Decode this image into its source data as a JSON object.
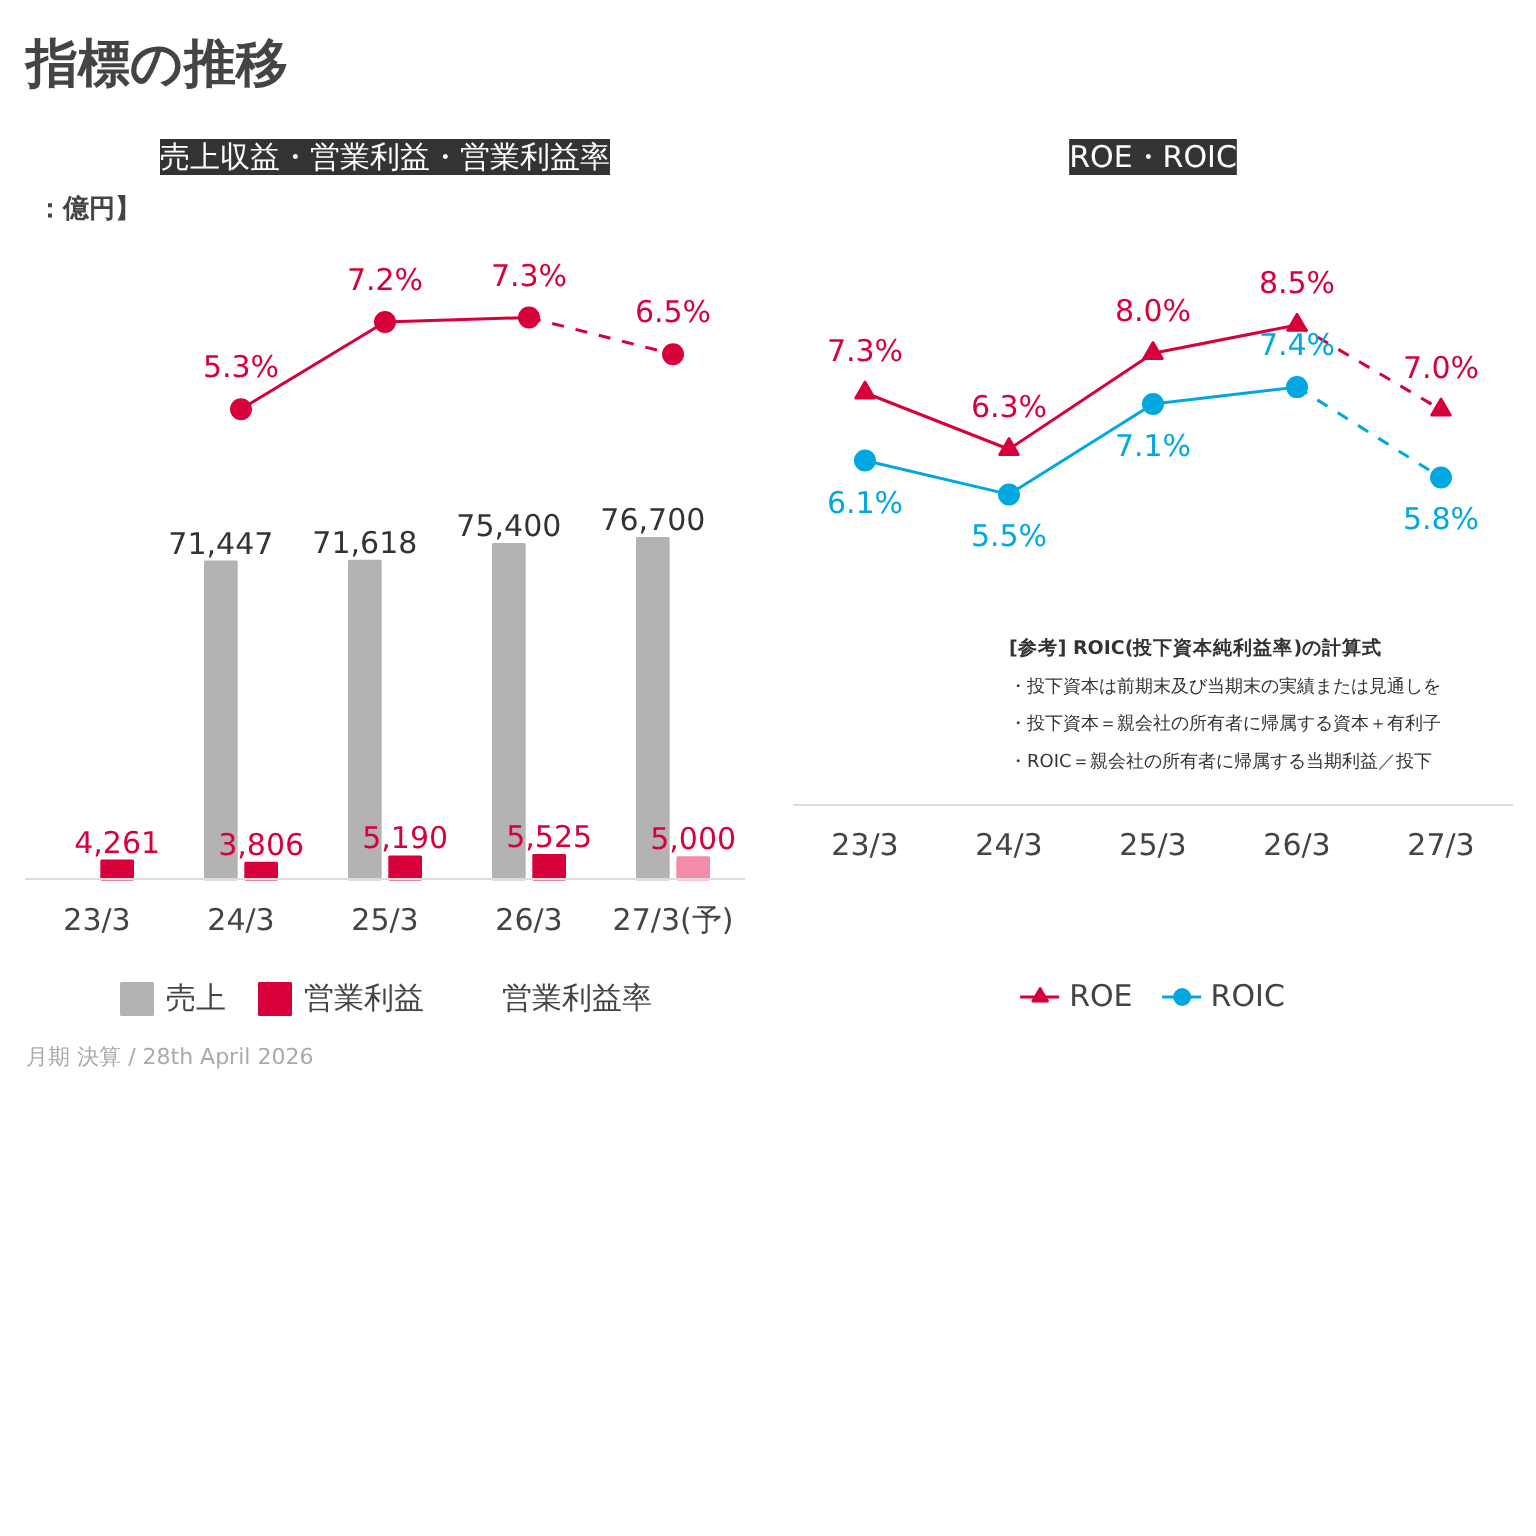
{
  "chart_data": [
    {
      "type": "line",
      "title": "売上収益・営業利益・営業利益率",
      "subtitle": "：億円】",
      "tick_labels": false,
      "grid": false,
      "series": [
        {
          "name": "営業利益率",
          "color": "#d7003a",
          "marker": "circle",
          "line_style": "solid",
          "values": [
            null,
            5.3,
            7.2,
            7.3,
            null
          ],
          "value_labels": [
            null,
            "5.3%",
            "7.2%",
            "7.3%",
            null
          ]
        },
        {
          "color": "#d7003a",
          "marker": "circle",
          "line_style": "dashed",
          "values": [
            null,
            null,
            null,
            7.3,
            6.5
          ],
          "value_labels": [
            null,
            null,
            null,
            null,
            "6.5%"
          ]
        }
      ],
      "annotations": [
        "指標の推移",
        "月期 決算 / 28th April 2026"
      ]
    },
    {
      "type": "bar",
      "categories": [
        "23/3",
        "24/3",
        "25/3",
        "26/3",
        "27/3(予)"
      ],
      "tick_labels": "x",
      "grid": false,
      "legend": "bottom",
      "series": [
        {
          "name": "売上",
          "color": "#b3b3b3",
          "values": [
            null,
            71447,
            71618,
            75400,
            76700
          ],
          "value_labels": [
            null,
            "71,447",
            "71,618",
            "75,400",
            "76,700"
          ]
        },
        {
          "name": "営業利益",
          "color": "#d7003a",
          "colors": [
            "#d7003a",
            "#d7003a",
            "#d7003a",
            "#d7003a",
            "#f28ca8"
          ],
          "values": [
            4261,
            3806,
            5190,
            5525,
            5000
          ],
          "value_labels": [
            "4,261",
            "3,806",
            "5,190",
            "5,525",
            "5,000"
          ]
        }
      ]
    },
    {
      "type": "line",
      "title": "ROE・ROIC",
      "categories": [
        "23/3",
        "24/3",
        "25/3",
        "26/3",
        "27/3"
      ],
      "tick_labels": "x",
      "grid": false,
      "legend": "bottom",
      "series": [
        {
          "name": "ROE",
          "color": "#d7003a",
          "marker": "triangle",
          "line_style": "solid",
          "values": [
            7.3,
            6.3,
            8.0,
            8.5,
            null
          ],
          "value_labels": [
            "7.3%",
            "6.3%",
            "8.0%",
            "8.5%",
            null
          ]
        },
        {
          "color": "#d7003a",
          "marker": "triangle",
          "line_style": "dashed",
          "values": [
            null,
            null,
            null,
            8.5,
            7.0
          ],
          "value_labels": [
            null,
            null,
            null,
            null,
            "7.0%"
          ]
        },
        {
          "name": "ROIC",
          "color": "#00a7e1",
          "marker": "circle",
          "line_style": "solid",
          "values": [
            6.1,
            5.5,
            7.1,
            7.4,
            null
          ],
          "value_labels": [
            "6.1%",
            "5.5%",
            "7.1%",
            "7.4%",
            null
          ]
        },
        {
          "color": "#00a7e1",
          "marker": "circle",
          "line_style": "dashed",
          "values": [
            null,
            null,
            null,
            7.4,
            5.8
          ],
          "value_labels": [
            null,
            null,
            null,
            null,
            "5.8%"
          ]
        }
      ],
      "annotations": [
        "[参考] ROIC(投下資本純利益率)の計算式",
        "・投下資本は前期末及び当期末の実績または見通しを",
        "・投下資本＝親会社の所有者に帰属する資本＋有利子",
        "・ROIC＝親会社の所有者に帰属する当期利益／投下"
      ]
    }
  ]
}
